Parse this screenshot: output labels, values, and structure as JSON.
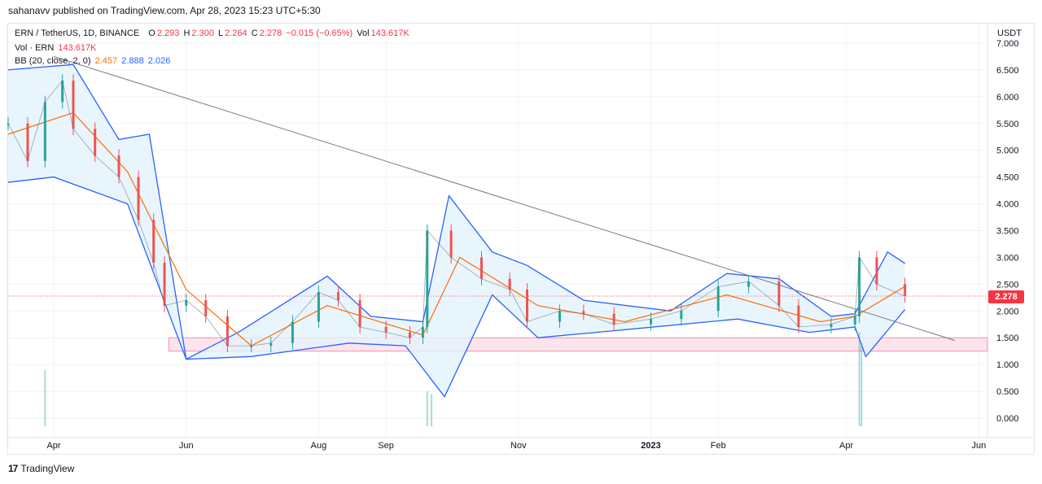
{
  "header": {
    "published_text": "sahanavv published on TradingView.com, Apr 28, 2023 15:23 UTC+5:30"
  },
  "legend": {
    "symbol": "ERN / TetherUS, 1D, BINANCE",
    "o_label": "O",
    "o_value": "2.293",
    "h_label": "H",
    "h_value": "2.300",
    "l_label": "L",
    "l_value": "2.264",
    "c_label": "C",
    "c_value": "2.278",
    "change": "−0.015 (−0.65%)",
    "vol_label": "Vol",
    "vol_value": "143.617K",
    "volume_label": "Vol · ERN",
    "volume_value": "143.617K",
    "bb_label": "BB (20, close, 2, 0)",
    "bb_basis": "2.457",
    "bb_upper": "2.888",
    "bb_lower": "2.026"
  },
  "price_axis": {
    "unit": "USDT",
    "current_price_label": "2.278"
  },
  "footer": {
    "brand": "TradingView",
    "logo_text": "17"
  },
  "colors": {
    "up": "#26a69a",
    "down": "#ef5350",
    "basis": "#ff6d00",
    "bands": "#2962ff",
    "band_fill": "#e3f2fd",
    "trendline": "#787b86",
    "zone_fill": "#fce4ec",
    "zone_stroke": "#f48fb1",
    "grid": "#f0f3fa"
  },
  "chart_data": {
    "type": "candlestick",
    "title": "ERN / TetherUS, 1D, BINANCE",
    "ylabel": "USDT",
    "ylim": [
      0,
      7.0
    ],
    "y_ticks": [
      "0.000",
      "0.500",
      "1.000",
      "1.500",
      "2.000",
      "2.500",
      "3.000",
      "3.500",
      "4.000",
      "4.500",
      "5.000",
      "5.500",
      "6.000",
      "6.500",
      "7.000"
    ],
    "x_ticks": [
      "Apr",
      "Jun",
      "Aug",
      "Sep",
      "Nov",
      "2023",
      "Feb",
      "Apr",
      "Jun"
    ],
    "x_tick_dates": [
      "2022-04-01",
      "2022-06-01",
      "2022-08-01",
      "2022-09-01",
      "2022-11-01",
      "2023-01-01",
      "2023-02-01",
      "2023-04-01",
      "2023-06-01"
    ],
    "x_range": [
      "2022-03-11",
      "2023-06-05"
    ],
    "current_price": 2.278,
    "price_series": [
      {
        "date": "2022-03-11",
        "close": 5.5
      },
      {
        "date": "2022-03-20",
        "close": 4.8
      },
      {
        "date": "2022-03-28",
        "close": 5.9
      },
      {
        "date": "2022-04-05",
        "close": 6.3
      },
      {
        "date": "2022-04-10",
        "close": 5.4
      },
      {
        "date": "2022-04-20",
        "close": 4.9
      },
      {
        "date": "2022-05-01",
        "close": 4.5
      },
      {
        "date": "2022-05-10",
        "close": 3.7
      },
      {
        "date": "2022-05-17",
        "close": 2.9
      },
      {
        "date": "2022-05-22",
        "close": 2.1
      },
      {
        "date": "2022-06-01",
        "close": 2.2
      },
      {
        "date": "2022-06-10",
        "close": 1.9
      },
      {
        "date": "2022-06-20",
        "close": 1.35
      },
      {
        "date": "2022-07-01",
        "close": 1.35
      },
      {
        "date": "2022-07-10",
        "close": 1.4
      },
      {
        "date": "2022-07-20",
        "close": 1.8
      },
      {
        "date": "2022-08-01",
        "close": 2.35
      },
      {
        "date": "2022-08-10",
        "close": 2.2
      },
      {
        "date": "2022-08-20",
        "close": 1.7
      },
      {
        "date": "2022-09-01",
        "close": 1.6
      },
      {
        "date": "2022-09-12",
        "close": 1.5
      },
      {
        "date": "2022-09-18",
        "close": 1.7
      },
      {
        "date": "2022-09-20",
        "close": 3.5
      },
      {
        "date": "2022-10-01",
        "close": 3.0
      },
      {
        "date": "2022-10-15",
        "close": 2.6
      },
      {
        "date": "2022-10-28",
        "close": 2.4
      },
      {
        "date": "2022-11-05",
        "close": 1.8
      },
      {
        "date": "2022-11-20",
        "close": 2.0
      },
      {
        "date": "2022-12-01",
        "close": 1.95
      },
      {
        "date": "2022-12-15",
        "close": 1.75
      },
      {
        "date": "2023-01-01",
        "close": 1.85
      },
      {
        "date": "2023-01-15",
        "close": 2.0
      },
      {
        "date": "2023-02-01",
        "close": 2.45
      },
      {
        "date": "2023-02-15",
        "close": 2.55
      },
      {
        "date": "2023-03-01",
        "close": 2.1
      },
      {
        "date": "2023-03-10",
        "close": 1.7
      },
      {
        "date": "2023-03-25",
        "close": 1.75
      },
      {
        "date": "2023-04-05",
        "close": 1.9
      },
      {
        "date": "2023-04-07",
        "close": 3.0
      },
      {
        "date": "2023-04-15",
        "close": 2.5
      },
      {
        "date": "2023-04-28",
        "close": 2.278
      }
    ],
    "bb_upper": [
      {
        "date": "2022-03-11",
        "value": 6.5
      },
      {
        "date": "2022-04-10",
        "value": 6.6
      },
      {
        "date": "2022-05-01",
        "value": 5.2
      },
      {
        "date": "2022-05-15",
        "value": 5.3
      },
      {
        "date": "2022-06-01",
        "value": 1.1
      },
      {
        "date": "2022-06-25",
        "value": 1.6
      },
      {
        "date": "2022-08-05",
        "value": 2.65
      },
      {
        "date": "2022-08-25",
        "value": 1.9
      },
      {
        "date": "2022-09-18",
        "value": 1.8
      },
      {
        "date": "2022-09-30",
        "value": 4.15
      },
      {
        "date": "2022-10-20",
        "value": 3.1
      },
      {
        "date": "2022-11-05",
        "value": 2.85
      },
      {
        "date": "2022-12-01",
        "value": 2.2
      },
      {
        "date": "2023-01-10",
        "value": 2.0
      },
      {
        "date": "2023-02-05",
        "value": 2.7
      },
      {
        "date": "2023-03-01",
        "value": 2.6
      },
      {
        "date": "2023-03-25",
        "value": 1.9
      },
      {
        "date": "2023-04-05",
        "value": 1.95
      },
      {
        "date": "2023-04-20",
        "value": 3.1
      },
      {
        "date": "2023-04-28",
        "value": 2.888
      }
    ],
    "bb_basis": [
      {
        "date": "2022-03-11",
        "value": 5.3
      },
      {
        "date": "2022-04-10",
        "value": 5.7
      },
      {
        "date": "2022-05-05",
        "value": 4.6
      },
      {
        "date": "2022-06-01",
        "value": 2.4
      },
      {
        "date": "2022-07-01",
        "value": 1.35
      },
      {
        "date": "2022-08-05",
        "value": 2.1
      },
      {
        "date": "2022-09-18",
        "value": 1.55
      },
      {
        "date": "2022-10-05",
        "value": 3.0
      },
      {
        "date": "2022-11-10",
        "value": 2.1
      },
      {
        "date": "2022-12-20",
        "value": 1.8
      },
      {
        "date": "2023-02-05",
        "value": 2.3
      },
      {
        "date": "2023-03-20",
        "value": 1.8
      },
      {
        "date": "2023-04-05",
        "value": 1.9
      },
      {
        "date": "2023-04-28",
        "value": 2.457
      }
    ],
    "bb_lower": [
      {
        "date": "2022-03-11",
        "value": 4.4
      },
      {
        "date": "2022-04-01",
        "value": 4.5
      },
      {
        "date": "2022-05-05",
        "value": 4.0
      },
      {
        "date": "2022-06-01",
        "value": 1.1
      },
      {
        "date": "2022-07-01",
        "value": 1.15
      },
      {
        "date": "2022-08-15",
        "value": 1.4
      },
      {
        "date": "2022-09-10",
        "value": 1.35
      },
      {
        "date": "2022-09-28",
        "value": 0.4
      },
      {
        "date": "2022-10-20",
        "value": 2.3
      },
      {
        "date": "2022-11-10",
        "value": 1.5
      },
      {
        "date": "2022-12-20",
        "value": 1.65
      },
      {
        "date": "2023-02-10",
        "value": 1.85
      },
      {
        "date": "2023-03-15",
        "value": 1.6
      },
      {
        "date": "2023-04-05",
        "value": 1.7
      },
      {
        "date": "2023-04-10",
        "value": 1.15
      },
      {
        "date": "2023-04-28",
        "value": 2.026
      }
    ],
    "trendline": [
      {
        "date": "2022-04-01",
        "value": 6.75
      },
      {
        "date": "2023-05-21",
        "value": 1.45
      }
    ],
    "support_zone": {
      "from": "2022-05-24",
      "to": "2023-06-05",
      "low": 1.25,
      "high": 1.5
    },
    "volume_spikes": [
      {
        "date": "2022-03-28",
        "value": 0.9
      },
      {
        "date": "2022-09-20",
        "value": 0.5
      },
      {
        "date": "2022-09-22",
        "value": 0.45
      },
      {
        "date": "2023-04-07",
        "value": 1.6
      },
      {
        "date": "2023-04-08",
        "value": 1.4
      }
    ]
  }
}
